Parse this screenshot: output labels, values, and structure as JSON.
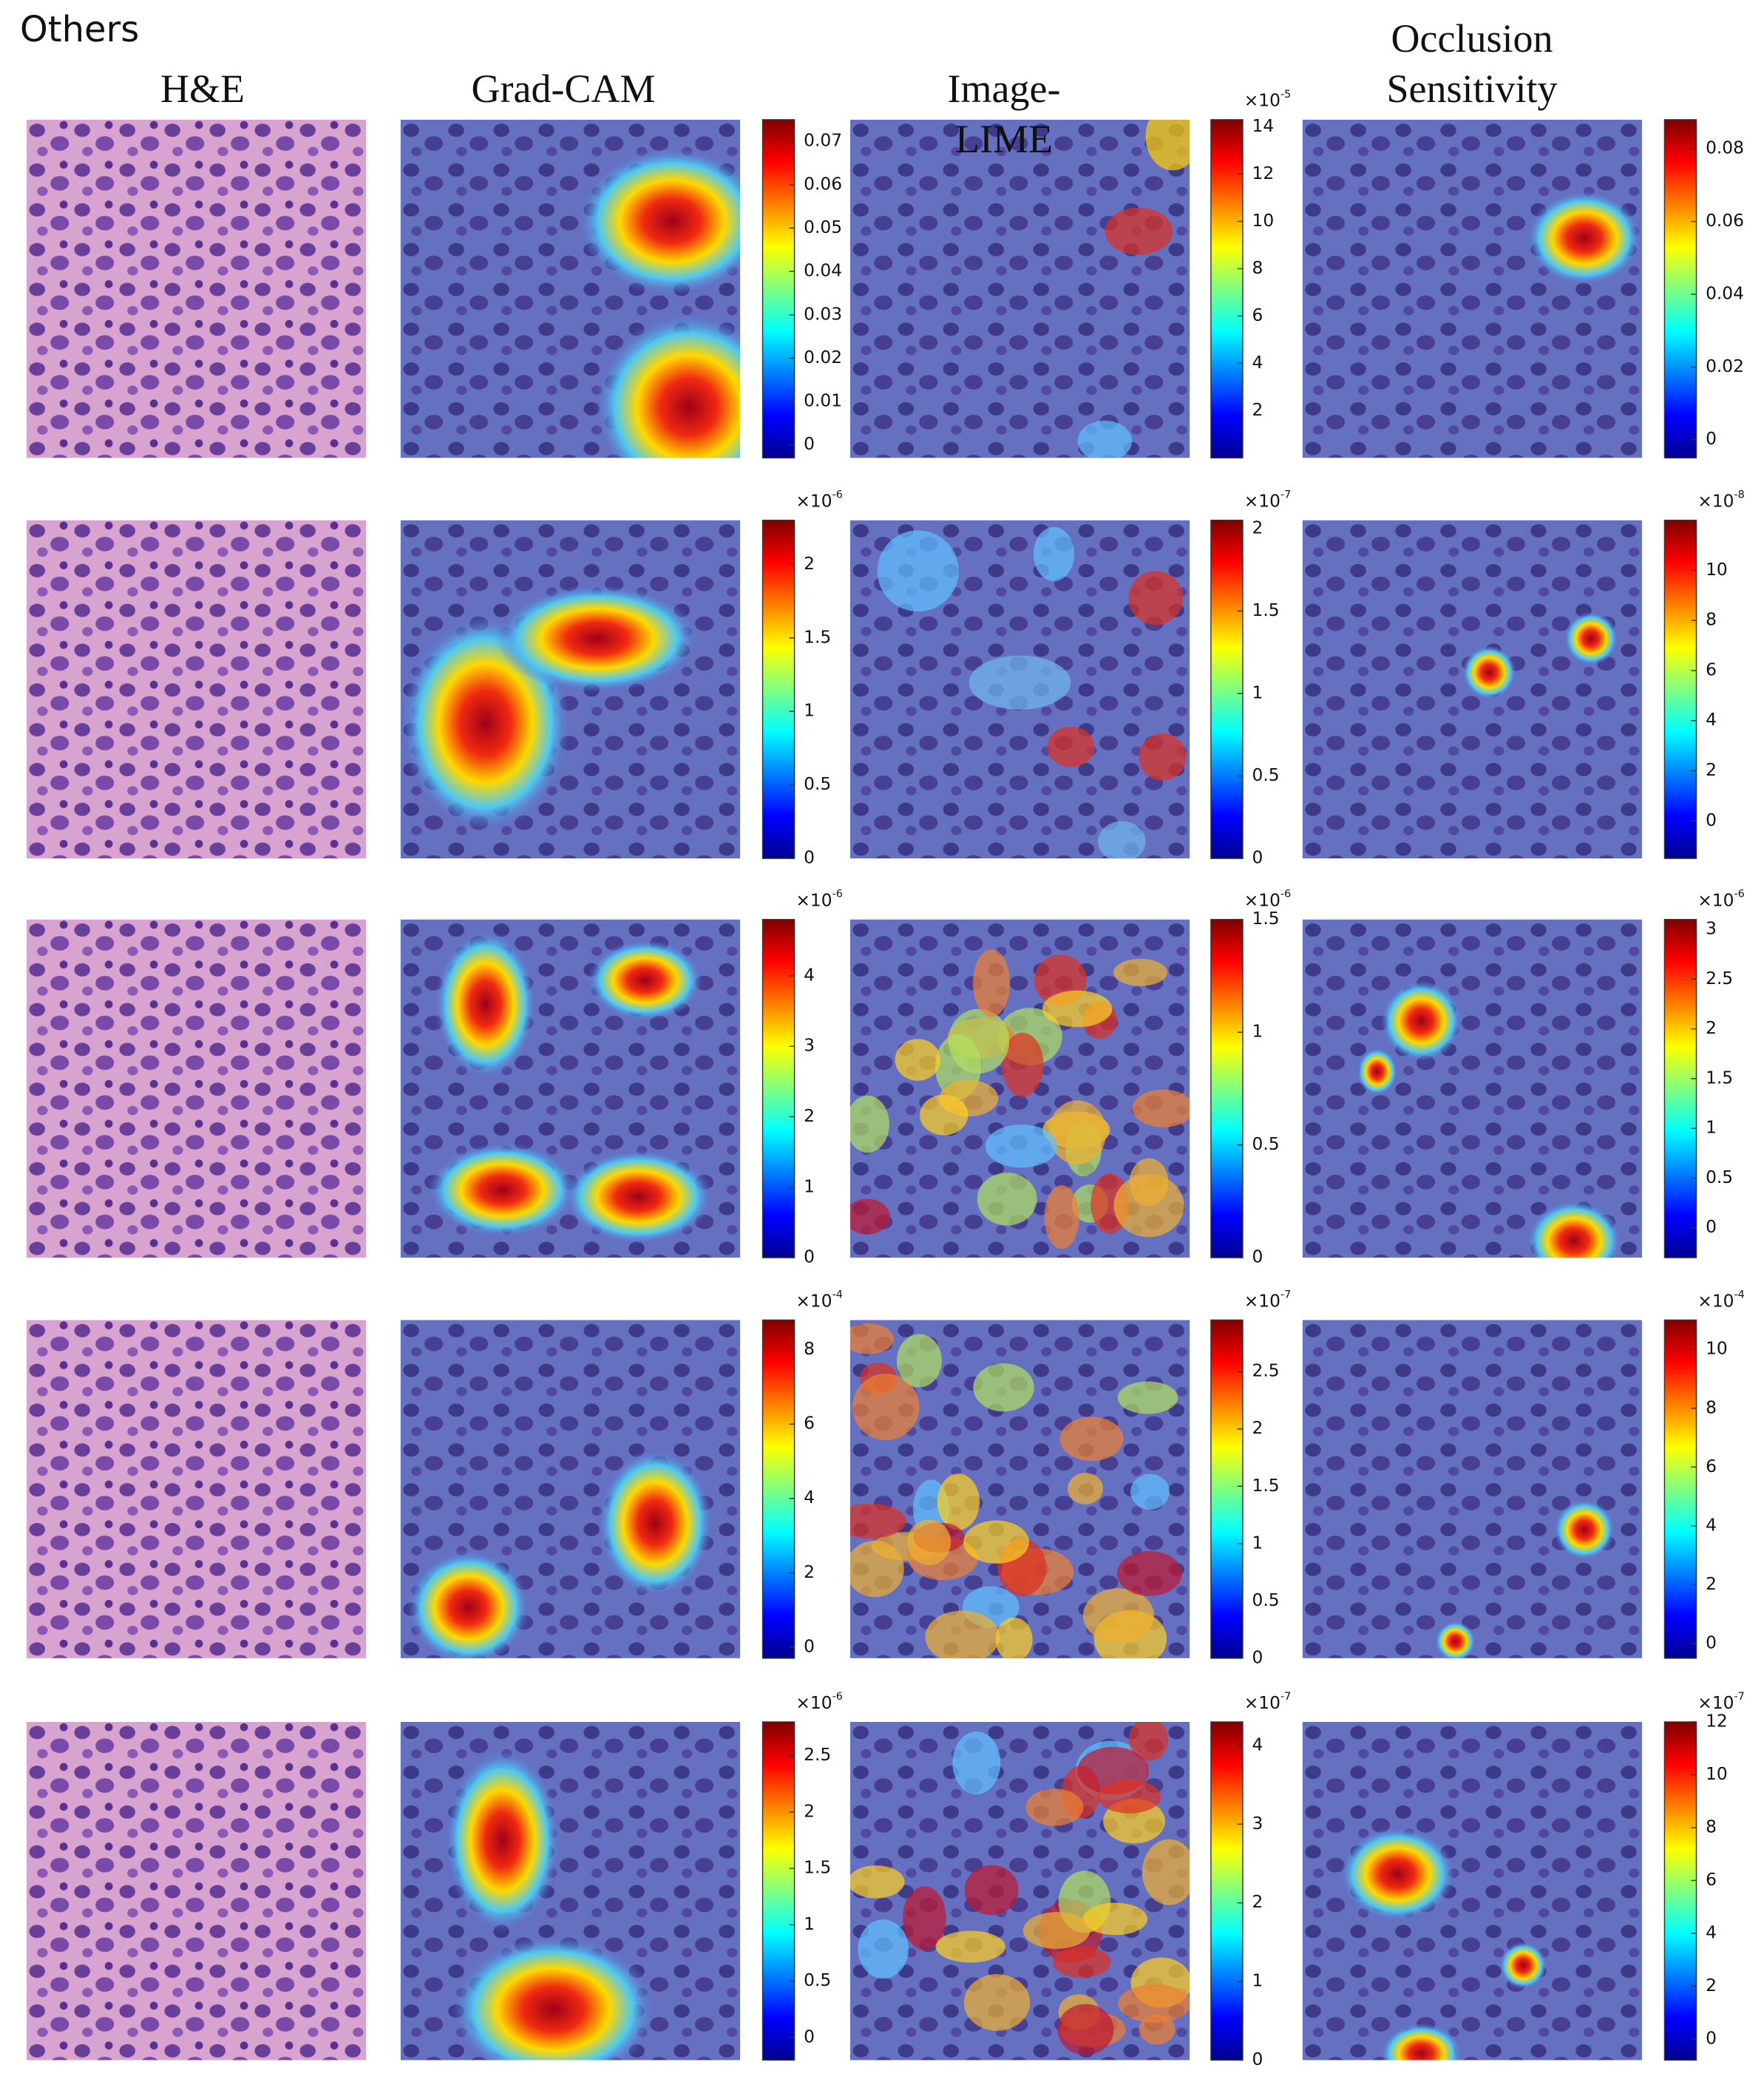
{
  "label": "Others",
  "columns": [
    "H&E",
    "Grad-CAM",
    "Image-LIME",
    "Occlusion Sensitivity"
  ],
  "rows": [
    {
      "colorbars": [
        {
          "lim": [
            -0.003,
            0.075
          ],
          "ticks": [
            0,
            0.01,
            0.02,
            0.03,
            0.04,
            0.05,
            0.06,
            0.07
          ]
        },
        {
          "scale": {
            "base": "×10",
            "exponent": "-5"
          },
          "lim": [
            0,
            14.3
          ],
          "ticks": [
            2,
            4,
            6,
            8,
            10,
            12,
            14
          ]
        },
        {
          "lim": [
            -0.005,
            0.088
          ],
          "ticks": [
            0,
            0.02,
            0.04,
            0.06,
            0.08
          ]
        }
      ]
    },
    {
      "colorbars": [
        {
          "scale": {
            "base": "×10",
            "exponent": "-6"
          },
          "lim": [
            0,
            2.3
          ],
          "ticks": [
            0,
            0.5,
            1,
            1.5,
            2
          ]
        },
        {
          "scale": {
            "base": "×10",
            "exponent": "-7"
          },
          "lim": [
            0,
            2.05
          ],
          "ticks": [
            0,
            0.5,
            1,
            1.5,
            2
          ]
        },
        {
          "scale": {
            "base": "×10",
            "exponent": "-8"
          },
          "lim": [
            -1.5,
            12
          ],
          "ticks": [
            0,
            2,
            4,
            6,
            8,
            10
          ]
        }
      ]
    },
    {
      "colorbars": [
        {
          "scale": {
            "base": "×10",
            "exponent": "-6"
          },
          "lim": [
            0,
            4.8
          ],
          "ticks": [
            0,
            1,
            2,
            3,
            4
          ]
        },
        {
          "scale": {
            "base": "×10",
            "exponent": "-6"
          },
          "lim": [
            0,
            1.5
          ],
          "ticks": [
            0,
            0.5,
            1,
            1.5
          ]
        },
        {
          "scale": {
            "base": "×10",
            "exponent": "-6"
          },
          "lim": [
            -0.3,
            3.1
          ],
          "ticks": [
            0,
            0.5,
            1,
            1.5,
            2,
            2.5,
            3
          ]
        }
      ]
    },
    {
      "colorbars": [
        {
          "scale": {
            "base": "×10",
            "exponent": "-4"
          },
          "lim": [
            -0.3,
            8.8
          ],
          "ticks": [
            0,
            2,
            4,
            6,
            8
          ]
        },
        {
          "scale": {
            "base": "×10",
            "exponent": "-7"
          },
          "lim": [
            0,
            2.95
          ],
          "ticks": [
            0,
            0.5,
            1,
            1.5,
            2,
            2.5
          ]
        },
        {
          "scale": {
            "base": "×10",
            "exponent": "-4"
          },
          "lim": [
            -0.5,
            11
          ],
          "ticks": [
            0,
            2,
            4,
            6,
            8,
            10
          ]
        }
      ]
    },
    {
      "colorbars": [
        {
          "scale": {
            "base": "×10",
            "exponent": "-6"
          },
          "lim": [
            -0.2,
            2.8
          ],
          "ticks": [
            0,
            0.5,
            1,
            1.5,
            2,
            2.5
          ]
        },
        {
          "scale": {
            "base": "×10",
            "exponent": "-7"
          },
          "lim": [
            0,
            4.3
          ],
          "ticks": [
            0,
            1,
            2,
            3,
            4
          ]
        },
        {
          "scale": {
            "base": "×10",
            "exponent": "-7"
          },
          "lim": [
            -0.8,
            12
          ],
          "ticks": [
            0,
            2,
            4,
            6,
            8,
            10,
            12
          ]
        }
      ]
    }
  ]
}
